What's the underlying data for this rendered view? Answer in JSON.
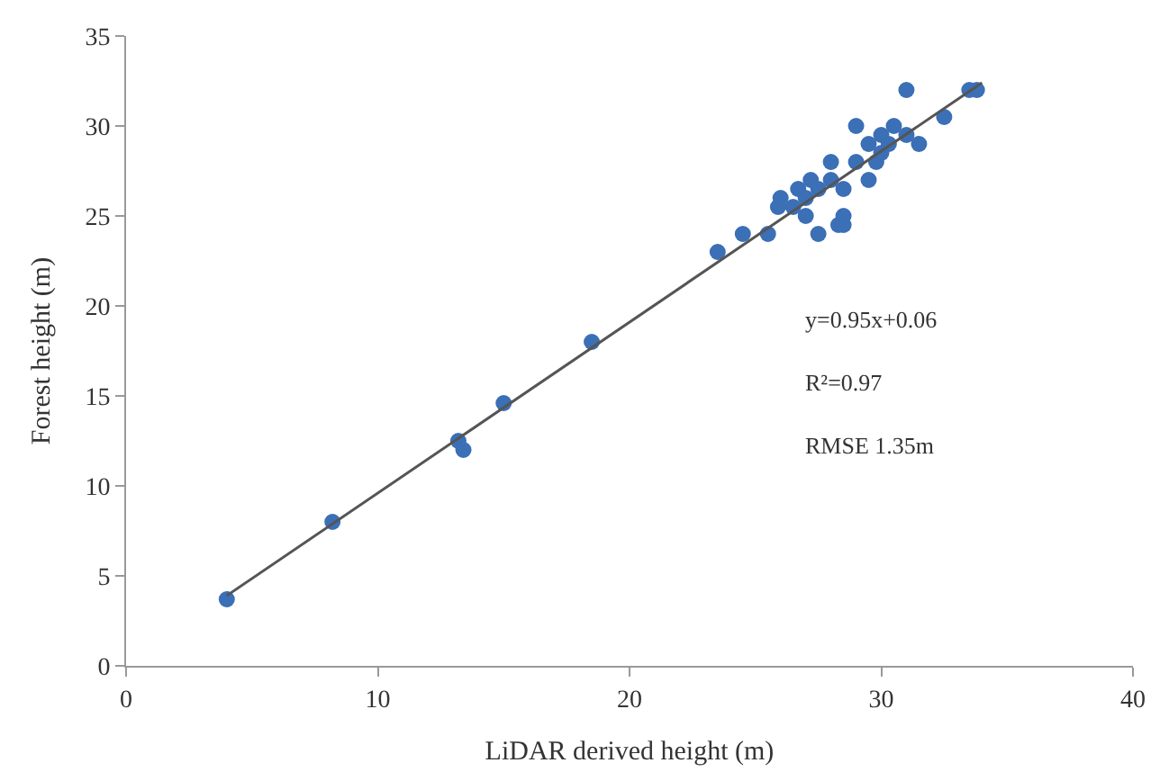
{
  "chart_data": {
    "type": "scatter",
    "xlabel": "LiDAR derived height (m)",
    "ylabel": "Forest height (m)",
    "xlim": [
      0,
      40
    ],
    "xticks": [
      0,
      10,
      20,
      30,
      40
    ],
    "ylim": [
      0,
      35
    ],
    "yticks": [
      0,
      5,
      10,
      15,
      20,
      25,
      30,
      35
    ],
    "series": [
      {
        "color": "#3b6fb6",
        "marker": "circle",
        "x": [
          4,
          8.2,
          13.2,
          13.4,
          15,
          18.5,
          23.5,
          24.5,
          25.5,
          25.9,
          26,
          26.5,
          26.7,
          27,
          27,
          27.2,
          27.5,
          27.5,
          28,
          28,
          28.3,
          28.5,
          28.5,
          28.5,
          29,
          29,
          29.5,
          29.5,
          29.8,
          30,
          30,
          30.3,
          30.5,
          31,
          31,
          31.5,
          32.5,
          33.5,
          33.8
        ],
        "values": [
          3.7,
          8,
          12.5,
          12,
          14.6,
          18,
          23,
          24,
          24,
          25.5,
          26,
          25.5,
          26.5,
          26,
          25,
          27,
          26.5,
          24,
          27,
          28,
          24.5,
          25,
          24.5,
          26.5,
          28,
          30,
          29,
          27,
          28,
          28.5,
          29.5,
          29,
          30,
          32,
          29.5,
          29,
          30.5,
          32,
          32
        ]
      },
      {
        "type": "line",
        "color": "#555555",
        "marker": "none",
        "x": [
          4,
          34
        ],
        "values": [
          3.9,
          32.4
        ]
      }
    ],
    "annotations": [
      {
        "text": "y=0.95x+0.06"
      },
      {
        "text": "R²=0.97"
      },
      {
        "text": "RMSE 1.35m"
      }
    ]
  }
}
